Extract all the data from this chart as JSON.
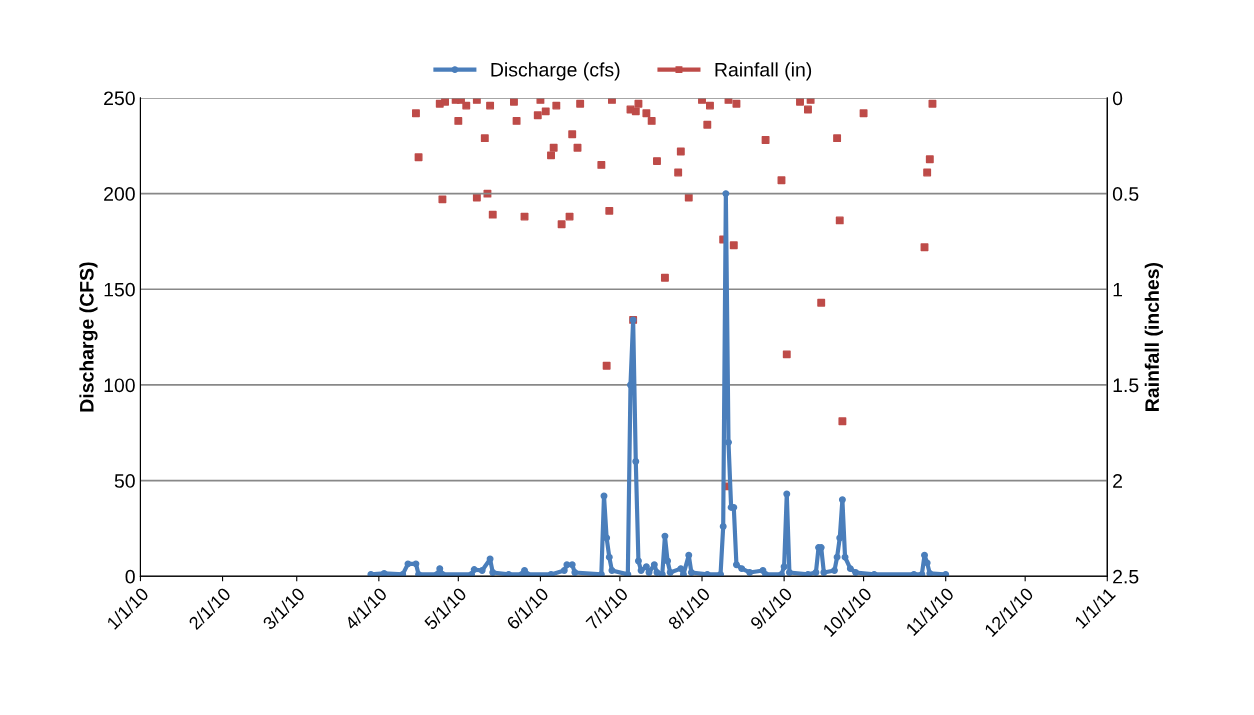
{
  "chart_data": {
    "type": "line",
    "ylabel": "Discharge (CFS)",
    "y2label": "Rainfall (inches)",
    "xlim": [
      "2010-01-01",
      "2011-01-01"
    ],
    "xticks": [
      {
        "value": "2010-01-01",
        "label": "1/1/10"
      },
      {
        "value": "2010-02-01",
        "label": "2/1/10"
      },
      {
        "value": "2010-03-01",
        "label": "3/1/10"
      },
      {
        "value": "2010-04-01",
        "label": "4/1/10"
      },
      {
        "value": "2010-05-01",
        "label": "5/1/10"
      },
      {
        "value": "2010-06-01",
        "label": "6/1/10"
      },
      {
        "value": "2010-07-01",
        "label": "7/1/10"
      },
      {
        "value": "2010-08-01",
        "label": "8/1/10"
      },
      {
        "value": "2010-09-01",
        "label": "9/1/10"
      },
      {
        "value": "2010-10-01",
        "label": "10/1/10"
      },
      {
        "value": "2010-11-01",
        "label": "11/1/10"
      },
      {
        "value": "2010-12-01",
        "label": "12/1/10"
      },
      {
        "value": "2011-01-01",
        "label": "1/1/11"
      }
    ],
    "ylim": [
      0,
      250
    ],
    "yticks": [
      0,
      50,
      100,
      150,
      200,
      250
    ],
    "y2lim": [
      2.5,
      0
    ],
    "y2ticks": [
      0,
      0.5,
      1,
      1.5,
      2,
      2.5
    ],
    "grid": "y",
    "legend": "top",
    "series": [
      {
        "name": "Discharge (cfs)",
        "marker": "circle",
        "color": "#4a7ebb",
        "x": [
          "2010-03-29",
          "2010-04-03",
          "2010-04-10",
          "2010-04-12",
          "2010-04-15",
          "2010-04-16",
          "2010-04-23",
          "2010-04-24",
          "2010-04-25",
          "2010-05-06",
          "2010-05-07",
          "2010-05-10",
          "2010-05-13",
          "2010-05-14",
          "2010-05-20",
          "2010-05-25",
          "2010-05-26",
          "2010-05-27",
          "2010-06-05",
          "2010-06-10",
          "2010-06-11",
          "2010-06-13",
          "2010-06-14",
          "2010-06-24",
          "2010-06-25",
          "2010-06-26",
          "2010-06-27",
          "2010-06-28",
          "2010-07-04",
          "2010-07-05",
          "2010-07-06",
          "2010-07-07",
          "2010-07-08",
          "2010-07-09",
          "2010-07-11",
          "2010-07-12",
          "2010-07-14",
          "2010-07-15",
          "2010-07-17",
          "2010-07-18",
          "2010-07-19",
          "2010-07-20",
          "2010-07-24",
          "2010-07-25",
          "2010-07-27",
          "2010-07-28",
          "2010-08-03",
          "2010-08-08",
          "2010-08-09",
          "2010-08-10",
          "2010-08-11",
          "2010-08-12",
          "2010-08-13",
          "2010-08-14",
          "2010-08-16",
          "2010-08-19",
          "2010-08-24",
          "2010-08-25",
          "2010-08-31",
          "2010-09-01",
          "2010-09-02",
          "2010-09-03",
          "2010-09-10",
          "2010-09-13",
          "2010-09-14",
          "2010-09-15",
          "2010-09-16",
          "2010-09-20",
          "2010-09-21",
          "2010-09-22",
          "2010-09-23",
          "2010-09-24",
          "2010-09-26",
          "2010-09-28",
          "2010-10-05",
          "2010-10-20",
          "2010-10-23",
          "2010-10-24",
          "2010-10-25",
          "2010-10-26",
          "2010-11-01"
        ],
        "values": [
          1,
          1.5,
          1,
          6.5,
          6.5,
          1,
          1,
          4,
          1,
          1,
          3.5,
          3,
          9,
          2,
          1,
          1,
          3,
          1,
          1,
          3,
          6,
          6,
          2,
          1,
          42,
          20,
          10,
          3,
          1,
          100,
          134,
          60,
          8,
          3,
          5,
          2,
          6,
          2,
          1,
          21,
          8,
          2,
          4,
          1,
          11,
          2,
          1,
          1,
          26,
          200,
          70,
          36,
          36,
          6,
          4,
          2,
          3,
          1,
          1,
          5,
          43,
          2,
          1,
          2,
          15,
          15,
          2,
          3,
          10,
          20,
          40,
          10,
          4,
          2,
          1,
          1,
          1,
          11,
          7,
          1.5,
          1
        ]
      },
      {
        "name": "Rainfall (in)",
        "type": "scatter",
        "marker": "square",
        "color": "#be4b48",
        "axis": "y2",
        "x": [
          "2010-04-15",
          "2010-04-16",
          "2010-04-24",
          "2010-04-26",
          "2010-04-25",
          "2010-04-30",
          "2010-05-01",
          "2010-05-02",
          "2010-05-04",
          "2010-05-08",
          "2010-05-08",
          "2010-05-12",
          "2010-05-11",
          "2010-05-13",
          "2010-05-14",
          "2010-05-22",
          "2010-05-23",
          "2010-05-26",
          "2010-06-01",
          "2010-05-31",
          "2010-06-03",
          "2010-06-07",
          "2010-06-06",
          "2010-06-05",
          "2010-06-09",
          "2010-06-12",
          "2010-06-13",
          "2010-06-15",
          "2010-06-16",
          "2010-06-24",
          "2010-06-26",
          "2010-06-27",
          "2010-06-28",
          "2010-07-05",
          "2010-07-06",
          "2010-07-07",
          "2010-07-08",
          "2010-07-11",
          "2010-07-13",
          "2010-07-15",
          "2010-07-18",
          "2010-07-23",
          "2010-07-24",
          "2010-07-27",
          "2010-08-01",
          "2010-08-03",
          "2010-08-04",
          "2010-08-09",
          "2010-08-10",
          "2010-08-11",
          "2010-08-13",
          "2010-08-14",
          "2010-08-25",
          "2010-08-31",
          "2010-09-02",
          "2010-09-07",
          "2010-09-10",
          "2010-09-11",
          "2010-09-15",
          "2010-09-21",
          "2010-09-22",
          "2010-09-23",
          "2010-10-01",
          "2010-10-24",
          "2010-10-25",
          "2010-10-26",
          "2010-10-27"
        ],
        "values": [
          0.08,
          0.31,
          0.03,
          0.02,
          0.53,
          0.01,
          0.12,
          0.01,
          0.04,
          0.01,
          0.52,
          0.5,
          0.21,
          0.04,
          0.61,
          0.02,
          0.12,
          0.62,
          0.01,
          0.09,
          0.07,
          0.04,
          0.26,
          0.3,
          0.66,
          0.62,
          0.19,
          0.26,
          0.03,
          0.35,
          1.4,
          0.59,
          0.01,
          0.06,
          1.16,
          0.07,
          0.03,
          0.08,
          0.12,
          0.33,
          0.94,
          0.39,
          0.28,
          0.52,
          0.01,
          0.14,
          0.04,
          0.74,
          2.03,
          0.01,
          0.77,
          0.03,
          0.22,
          0.43,
          1.34,
          0.02,
          0.06,
          0.01,
          1.07,
          0.21,
          0.64,
          1.69,
          0.08,
          0.78,
          0.39,
          0.32,
          0.03
        ]
      }
    ]
  }
}
